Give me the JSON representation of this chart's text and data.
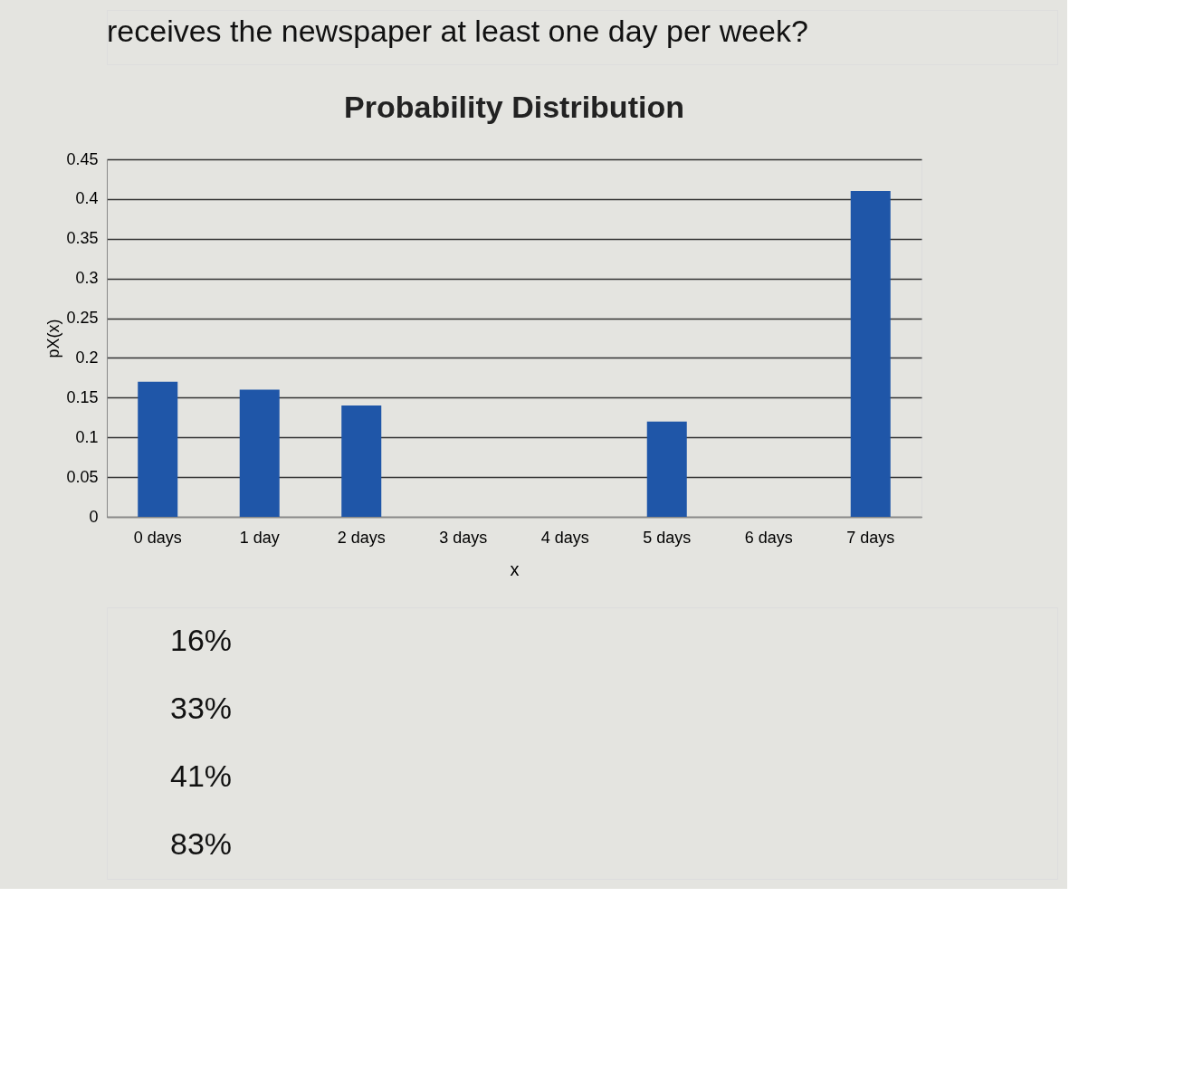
{
  "chart_data": {
    "type": "bar",
    "title": "Probability Distribution",
    "xlabel": "x",
    "ylabel": "pX(x)",
    "categories": [
      "0 days",
      "1 day",
      "2 days",
      "3 days",
      "4 days",
      "5 days",
      "6 days",
      "7 days"
    ],
    "values": [
      0.17,
      0.16,
      0.14,
      0,
      0,
      0.12,
      0,
      0.41
    ],
    "color": "#1f56a8",
    "ylim": [
      0,
      0.45
    ],
    "yticks": [
      0,
      0.05,
      0.1,
      0.15,
      0.2,
      0.25,
      0.3,
      0.35,
      0.4,
      0.45
    ],
    "grid": "y",
    "annotations": [
      "receives the newspaper at least one day per week?",
      "16%",
      "33%",
      "41%",
      "83%"
    ]
  }
}
